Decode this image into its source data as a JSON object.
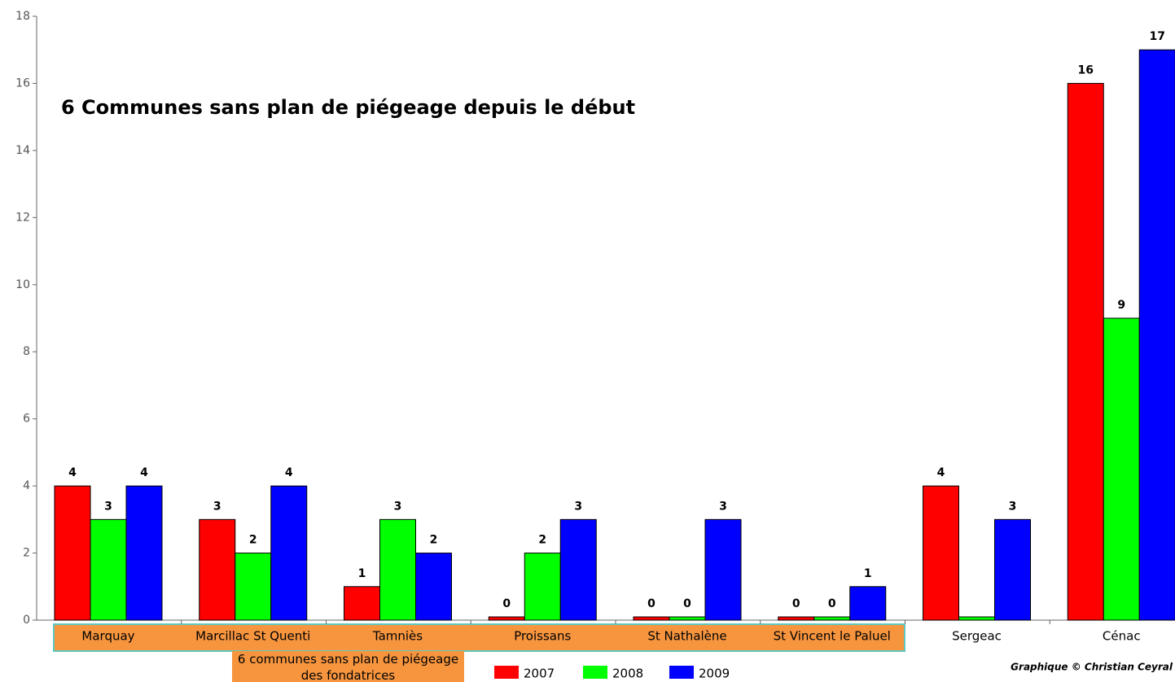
{
  "chart_data": {
    "type": "bar",
    "annotation": "6 Communes sans plan de piégeage depuis le début",
    "highlight_note": "6 communes sans plan de piégeage des fondatrices",
    "credit": "Graphique © Christian Ceyral",
    "categories": [
      "Marquay",
      "Marcillac St Quenti",
      "Tamniès",
      "Proissans",
      "St Nathalène",
      "St Vincent le Paluel",
      "Sergeac",
      "Cénac"
    ],
    "series": [
      {
        "name": "2007",
        "color": "#ff0000",
        "values": [
          4,
          3,
          1,
          0,
          0,
          0,
          4,
          16
        ]
      },
      {
        "name": "2008",
        "color": "#00ff00",
        "values": [
          3,
          2,
          3,
          2,
          0,
          0,
          0,
          9
        ],
        "value_labels": [
          "3",
          "2",
          "3",
          "2",
          "0",
          "0",
          null,
          "9"
        ]
      },
      {
        "name": "2009",
        "color": "#0000ff",
        "values": [
          4,
          4,
          2,
          3,
          3,
          1,
          3,
          17
        ]
      }
    ],
    "ylim": [
      0,
      18
    ],
    "yticks": [
      0,
      2,
      4,
      6,
      8,
      10,
      12,
      14,
      16,
      18
    ]
  }
}
